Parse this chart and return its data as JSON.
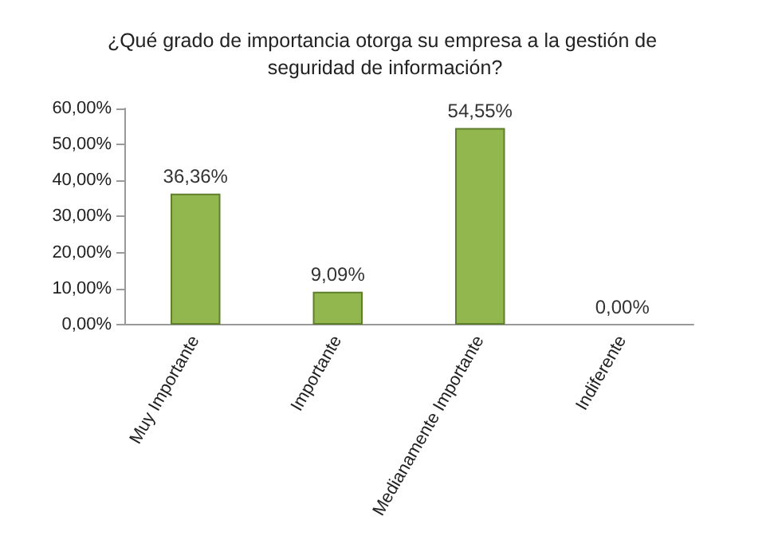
{
  "chart_data": {
    "type": "bar",
    "title": "¿Qué grado de importancia otorga su empresa a la gestión de seguridad de información?",
    "categories": [
      "Muy Importante",
      "Importante",
      "Medianamente Importante",
      "Indiferente"
    ],
    "values": [
      36.36,
      9.09,
      54.55,
      0
    ],
    "value_labels": [
      "36,36%",
      "9,09%",
      "54,55%",
      "0,00%"
    ],
    "color": "#92b74e",
    "ylim": [
      0,
      60
    ],
    "yticks": [
      {
        "value": 0,
        "label": "0,00%"
      },
      {
        "value": 10,
        "label": "10,00%"
      },
      {
        "value": 20,
        "label": "20,00%"
      },
      {
        "value": 30,
        "label": "30,00%"
      },
      {
        "value": 40,
        "label": "40,00%"
      },
      {
        "value": 50,
        "label": "50,00%"
      },
      {
        "value": 60,
        "label": "60,00%"
      }
    ],
    "grid": false
  }
}
